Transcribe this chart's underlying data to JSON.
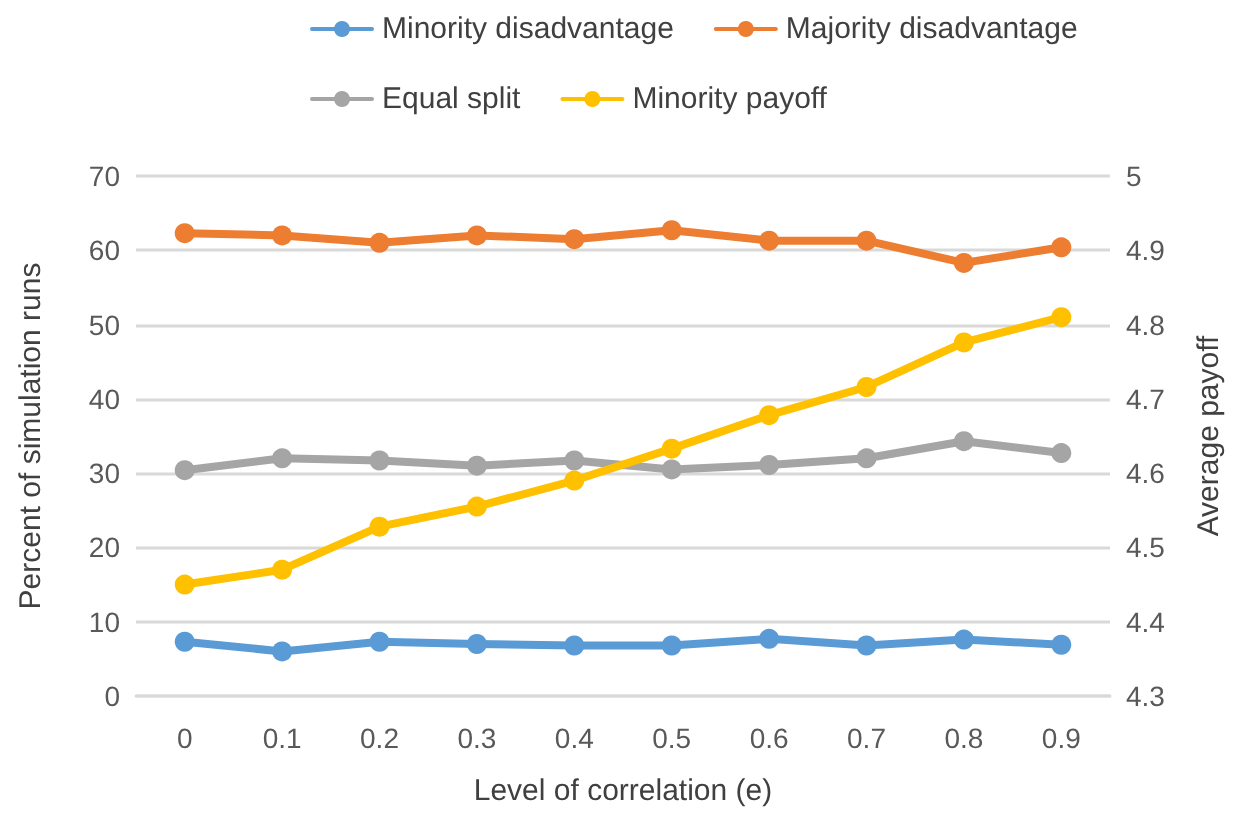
{
  "chart_data": {
    "type": "line",
    "xlabel": "Level of correlation (e)",
    "ylabel": "Percent of simulation runs",
    "y2label": "Average payoff",
    "categories": [
      "0",
      "0.1",
      "0.2",
      "0.3",
      "0.4",
      "0.5",
      "0.6",
      "0.7",
      "0.8",
      "0.9"
    ],
    "series": [
      {
        "name": "Minority disadvantage",
        "color": "#5b9bd5",
        "values": [
          7.3,
          6.0,
          7.3,
          7.0,
          6.8,
          6.8,
          7.7,
          6.8,
          7.6,
          6.9
        ]
      },
      {
        "name": "Majority disadvantage",
        "color": "#ed7d31",
        "values": [
          62.3,
          62.0,
          61.0,
          62.0,
          61.5,
          62.7,
          61.3,
          61.3,
          58.3,
          60.4
        ]
      },
      {
        "name": "Equal split",
        "color": "#a5a5a5",
        "values": [
          30.4,
          32.0,
          31.7,
          31.0,
          31.7,
          30.5,
          31.1,
          32.0,
          34.3,
          32.7
        ]
      },
      {
        "name": "Minority payoff",
        "color": "#ffc000",
        "axis": "y2",
        "values": [
          4.45,
          4.47,
          4.528,
          4.555,
          4.59,
          4.633,
          4.678,
          4.716,
          4.776,
          4.81
        ]
      }
    ],
    "ylim": [
      0,
      70
    ],
    "yticks": [
      0,
      10,
      20,
      30,
      40,
      50,
      60,
      70
    ],
    "y2lim": [
      4.3,
      5
    ],
    "y2ticks": [
      4.3,
      4.4,
      4.5,
      4.6,
      4.7,
      4.8,
      4.9,
      5
    ],
    "grid": "y",
    "legend": "top",
    "marker": "circle",
    "line_style": "solid"
  }
}
